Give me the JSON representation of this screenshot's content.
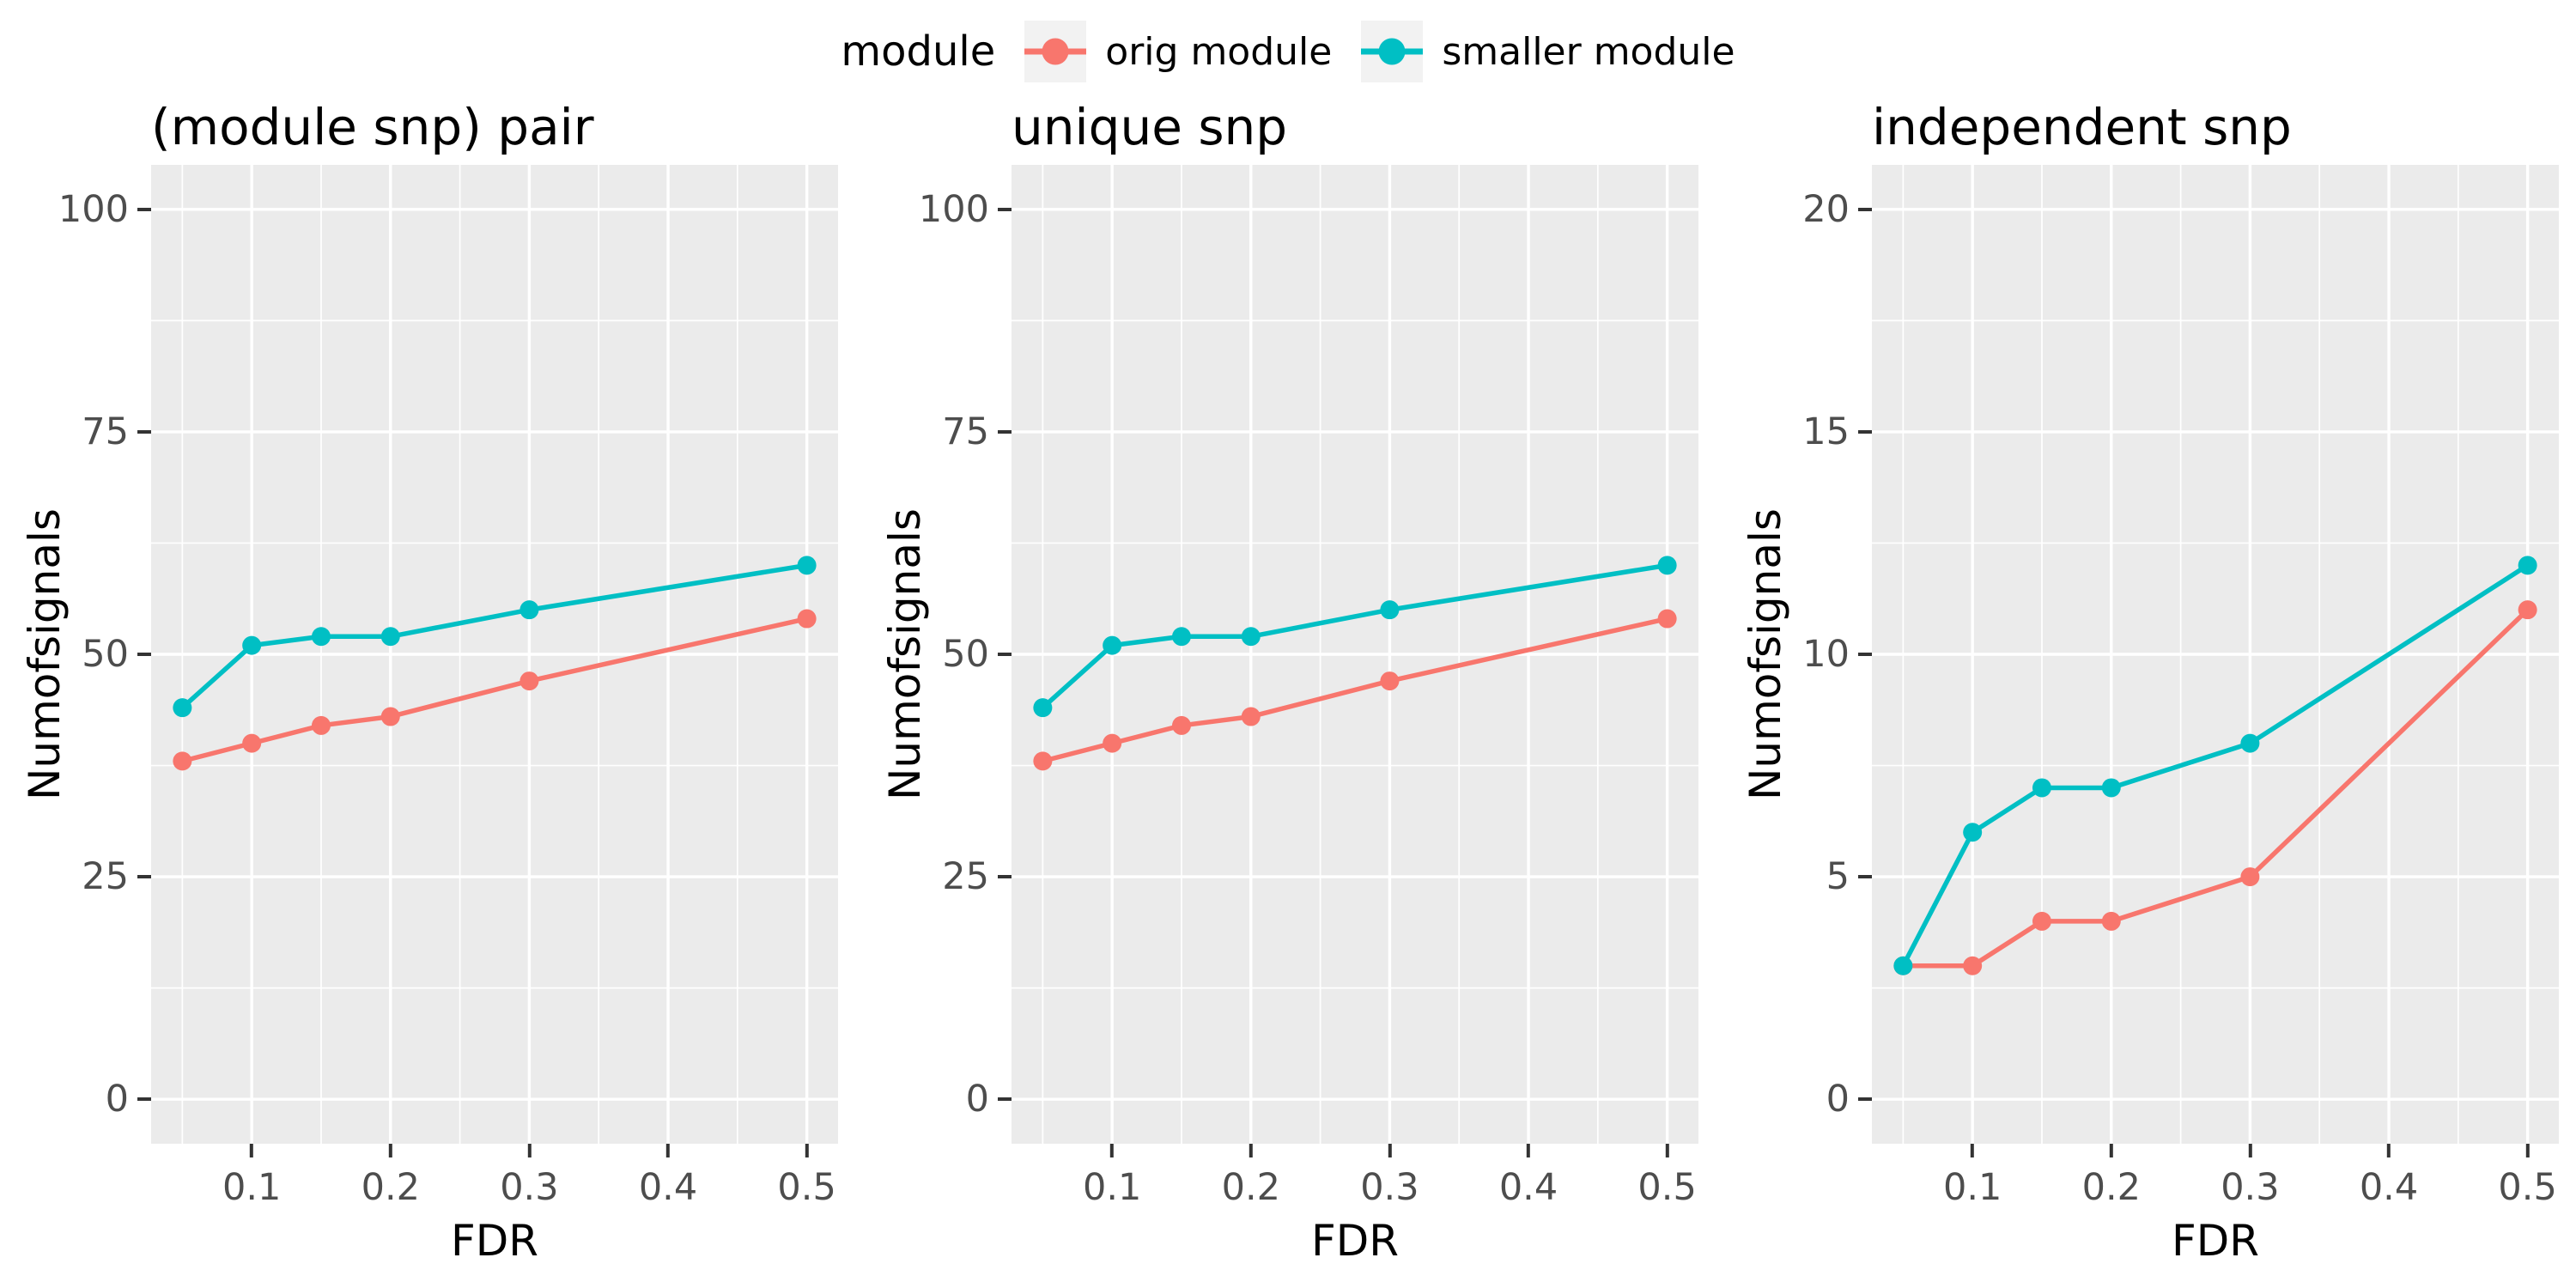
{
  "legend": {
    "title": "module",
    "items": [
      {
        "label": "orig module",
        "color": "#F8766D"
      },
      {
        "label": "smaller module",
        "color": "#00BFC4"
      }
    ]
  },
  "style": {
    "panel_bg": "#EBEBEB",
    "grid_color": "#FFFFFF",
    "tick_mark_color": "#333333",
    "tick_text_color": "#4D4D4D",
    "axis_text_color": "#000000",
    "legend_key_bg": "#F2F2F2"
  },
  "chart_data": [
    {
      "type": "line",
      "title": "(module snp) pair",
      "xlabel": "FDR",
      "ylabel": "Numofsignals",
      "x": [
        0.05,
        0.1,
        0.15,
        0.2,
        0.3,
        0.5
      ],
      "series": [
        {
          "name": "orig module",
          "color": "#F8766D",
          "values": [
            38,
            40,
            42,
            43,
            47,
            54
          ]
        },
        {
          "name": "smaller module",
          "color": "#00BFC4",
          "values": [
            44,
            51,
            52,
            52,
            55,
            60
          ]
        }
      ],
      "xlim": [
        0.05,
        0.5
      ],
      "ylim": [
        0,
        100
      ],
      "xticks": [
        0.1,
        0.2,
        0.3,
        0.4,
        0.5
      ],
      "xtick_labels": [
        "0.1",
        "0.2",
        "0.3",
        "0.4",
        "0.5"
      ],
      "yticks": [
        0,
        25,
        50,
        75,
        100
      ],
      "ytick_labels": [
        "0",
        "25",
        "50",
        "75",
        "100"
      ],
      "grid": true,
      "legend_position": "top"
    },
    {
      "type": "line",
      "title": "unique snp",
      "xlabel": "FDR",
      "ylabel": "Numofsignals",
      "x": [
        0.05,
        0.1,
        0.15,
        0.2,
        0.3,
        0.5
      ],
      "series": [
        {
          "name": "orig module",
          "color": "#F8766D",
          "values": [
            38,
            40,
            42,
            43,
            47,
            54
          ]
        },
        {
          "name": "smaller module",
          "color": "#00BFC4",
          "values": [
            44,
            51,
            52,
            52,
            55,
            60
          ]
        }
      ],
      "xlim": [
        0.05,
        0.5
      ],
      "ylim": [
        0,
        100
      ],
      "xticks": [
        0.1,
        0.2,
        0.3,
        0.4,
        0.5
      ],
      "xtick_labels": [
        "0.1",
        "0.2",
        "0.3",
        "0.4",
        "0.5"
      ],
      "yticks": [
        0,
        25,
        50,
        75,
        100
      ],
      "ytick_labels": [
        "0",
        "25",
        "50",
        "75",
        "100"
      ],
      "grid": true,
      "legend_position": "top"
    },
    {
      "type": "line",
      "title": "independent snp",
      "xlabel": "FDR",
      "ylabel": "Numofsignals",
      "x": [
        0.05,
        0.1,
        0.15,
        0.2,
        0.3,
        0.5
      ],
      "series": [
        {
          "name": "orig module",
          "color": "#F8766D",
          "values": [
            3,
            3,
            4,
            4,
            5,
            11
          ]
        },
        {
          "name": "smaller module",
          "color": "#00BFC4",
          "values": [
            3,
            6,
            7,
            7,
            8,
            12
          ]
        }
      ],
      "xlim": [
        0.05,
        0.5
      ],
      "ylim": [
        0,
        20
      ],
      "xticks": [
        0.1,
        0.2,
        0.3,
        0.4,
        0.5
      ],
      "xtick_labels": [
        "0.1",
        "0.2",
        "0.3",
        "0.4",
        "0.5"
      ],
      "yticks": [
        0,
        5,
        10,
        15,
        20
      ],
      "ytick_labels": [
        "0",
        "5",
        "10",
        "15",
        "20"
      ],
      "grid": true,
      "legend_position": "top"
    }
  ]
}
